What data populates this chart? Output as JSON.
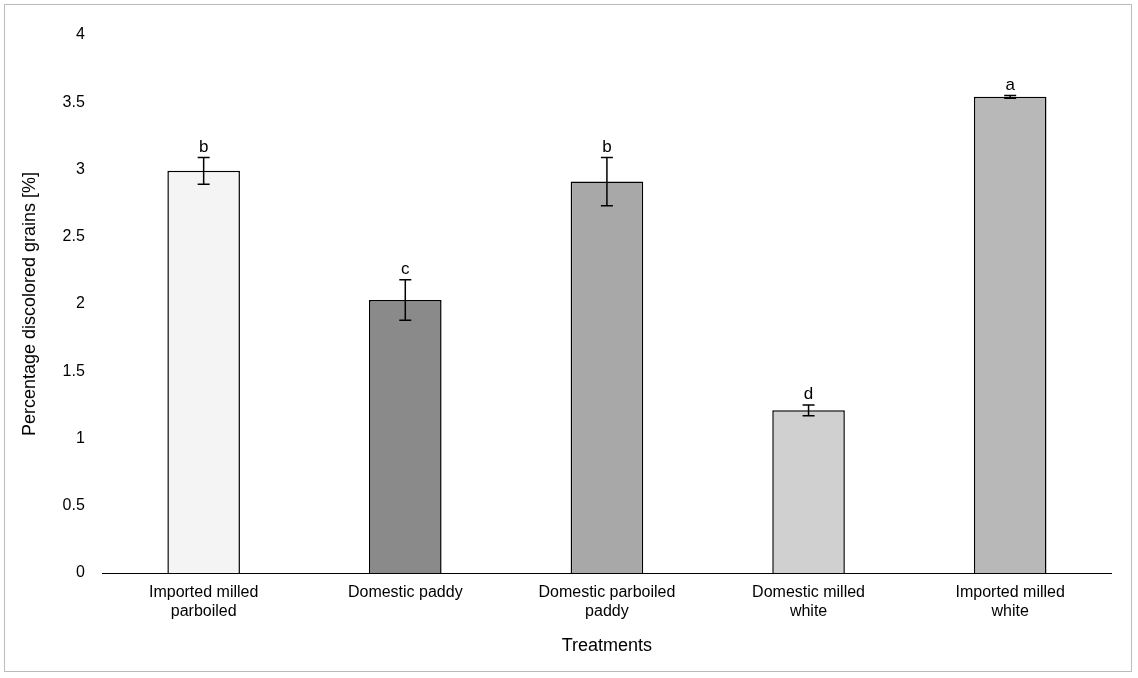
{
  "chart_data": {
    "type": "bar",
    "xlabel": "Treatments",
    "ylabel": "Percentage discolored grains [%]",
    "categories": [
      "Imported milled parboiled",
      "Domestic paddy",
      "Domestic parboiled paddy",
      "Domestic milled white",
      "Imported milled white"
    ],
    "values": [
      2.99,
      2.03,
      2.91,
      1.21,
      3.54
    ],
    "errors": [
      0.1,
      0.15,
      0.18,
      0.04,
      0.01
    ],
    "colors": [
      "#f4f4f4",
      "#8a8a8a",
      "#a8a8a8",
      "#d0d0d0",
      "#b8b8b8"
    ],
    "ylim": [
      0,
      4
    ],
    "yticks": [
      0,
      0.5,
      1,
      1.5,
      2,
      2.5,
      3,
      3.5,
      4
    ],
    "grid": false,
    "legend": false,
    "annotations": [
      {
        "text": "b",
        "x": "Imported milled parboiled",
        "y": 3.09
      },
      {
        "text": "c",
        "x": "Domestic paddy",
        "y": 2.18
      },
      {
        "text": "b",
        "x": "Domestic parboiled paddy",
        "y": 3.09
      },
      {
        "text": "d",
        "x": "Domestic milled white",
        "y": 1.25
      },
      {
        "text": "a",
        "x": "Imported milled white",
        "y": 3.55
      }
    ]
  }
}
